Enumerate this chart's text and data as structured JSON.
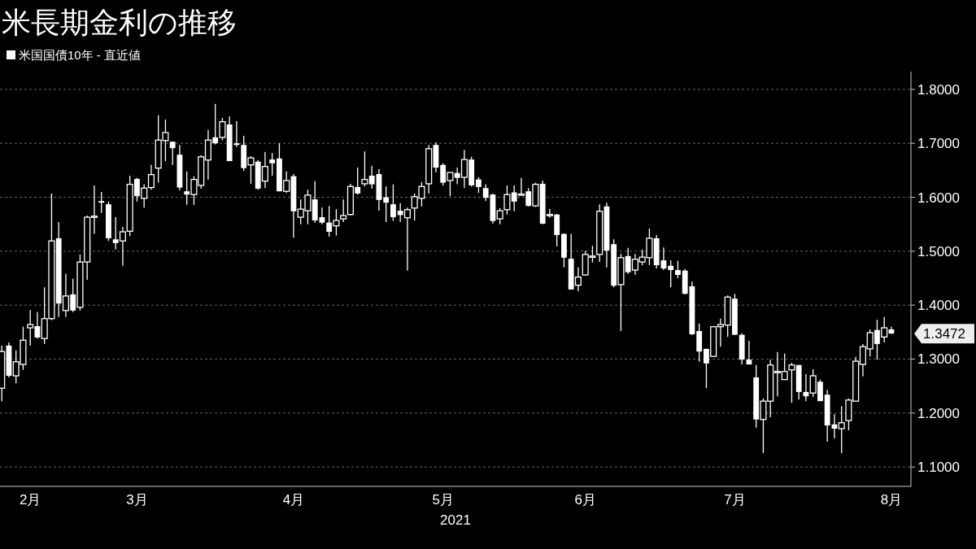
{
  "chart_data": {
    "type": "candlestick",
    "title": "米長期金利の推移",
    "xlabel": "2021",
    "categories": [
      null,
      null,
      null,
      null,
      "2月",
      null,
      null,
      null,
      null,
      null,
      null,
      null,
      null,
      null,
      null,
      null,
      null,
      null,
      null,
      "3月",
      null,
      null,
      null,
      null,
      null,
      null,
      null,
      null,
      null,
      null,
      null,
      null,
      null,
      null,
      null,
      null,
      null,
      null,
      null,
      null,
      null,
      "4月",
      null,
      null,
      null,
      null,
      null,
      null,
      null,
      null,
      null,
      null,
      null,
      null,
      null,
      null,
      null,
      null,
      null,
      null,
      null,
      null,
      "5月",
      null,
      null,
      null,
      null,
      null,
      null,
      null,
      null,
      null,
      null,
      null,
      null,
      null,
      null,
      null,
      null,
      null,
      null,
      null,
      "6月",
      null,
      null,
      null,
      null,
      null,
      null,
      null,
      null,
      null,
      null,
      null,
      null,
      null,
      null,
      null,
      null,
      null,
      null,
      null,
      null,
      "7月",
      null,
      null,
      null,
      null,
      null,
      null,
      null,
      null,
      null,
      null,
      null,
      null,
      null,
      null,
      null,
      null,
      null,
      null,
      null,
      null,
      null,
      "8月"
    ],
    "series": [
      {
        "name": "米国国債10年 - 直近値",
        "color": "#ffffff",
        "ohlc": [
          [
            1.246,
            1.325,
            1.222,
            1.314
          ],
          [
            1.325,
            1.331,
            1.266,
            1.269
          ],
          [
            1.269,
            1.316,
            1.255,
            1.295
          ],
          [
            1.29,
            1.36,
            1.28,
            1.335
          ],
          [
            1.358,
            1.391,
            1.325,
            1.364
          ],
          [
            1.361,
            1.387,
            1.338,
            1.34
          ],
          [
            1.338,
            1.433,
            1.328,
            1.375
          ],
          [
            1.375,
            1.607,
            1.372,
            1.519
          ],
          [
            1.524,
            1.554,
            1.378,
            1.403
          ],
          [
            1.39,
            1.458,
            1.378,
            1.417
          ],
          [
            1.42,
            1.449,
            1.387,
            1.39
          ],
          [
            1.396,
            1.494,
            1.39,
            1.48
          ],
          [
            1.48,
            1.566,
            1.447,
            1.563
          ],
          [
            1.563,
            1.622,
            1.532,
            1.565
          ],
          [
            1.593,
            1.61,
            1.571,
            1.59
          ],
          [
            1.587,
            1.592,
            1.519,
            1.524
          ],
          [
            1.522,
            1.563,
            1.503,
            1.515
          ],
          [
            1.519,
            1.545,
            1.473,
            1.536
          ],
          [
            1.537,
            1.64,
            1.528,
            1.624
          ],
          [
            1.634,
            1.636,
            1.592,
            1.602
          ],
          [
            1.598,
            1.624,
            1.581,
            1.617
          ],
          [
            1.618,
            1.66,
            1.614,
            1.642
          ],
          [
            1.654,
            1.752,
            1.627,
            1.706
          ],
          [
            1.705,
            1.744,
            1.667,
            1.72
          ],
          [
            1.703,
            1.703,
            1.66,
            1.691
          ],
          [
            1.679,
            1.697,
            1.613,
            1.618
          ],
          [
            1.611,
            1.648,
            1.586,
            1.605
          ],
          [
            1.605,
            1.639,
            1.586,
            1.633
          ],
          [
            1.622,
            1.678,
            1.616,
            1.675
          ],
          [
            1.669,
            1.725,
            1.633,
            1.706
          ],
          [
            1.711,
            1.773,
            1.698,
            1.7
          ],
          [
            1.711,
            1.747,
            1.706,
            1.74
          ],
          [
            1.735,
            1.75,
            1.667,
            1.667
          ],
          [
            1.7,
            1.741,
            1.693,
            1.697
          ],
          [
            1.697,
            1.714,
            1.649,
            1.654
          ],
          [
            1.66,
            1.676,
            1.625,
            1.673
          ],
          [
            1.666,
            1.669,
            1.614,
            1.616
          ],
          [
            1.63,
            1.684,
            1.617,
            1.657
          ],
          [
            1.67,
            1.682,
            1.64,
            1.663
          ],
          [
            1.672,
            1.7,
            1.611,
            1.611
          ],
          [
            1.611,
            1.648,
            1.608,
            1.631
          ],
          [
            1.639,
            1.643,
            1.525,
            1.574
          ],
          [
            1.563,
            1.596,
            1.55,
            1.578
          ],
          [
            1.575,
            1.614,
            1.55,
            1.604
          ],
          [
            1.596,
            1.63,
            1.553,
            1.557
          ],
          [
            1.563,
            1.581,
            1.55,
            1.553
          ],
          [
            1.553,
            1.584,
            1.527,
            1.536
          ],
          [
            1.547,
            1.578,
            1.529,
            1.557
          ],
          [
            1.56,
            1.596,
            1.554,
            1.566
          ],
          [
            1.568,
            1.625,
            1.566,
            1.62
          ],
          [
            1.619,
            1.655,
            1.605,
            1.607
          ],
          [
            1.625,
            1.685,
            1.62,
            1.633
          ],
          [
            1.64,
            1.658,
            1.616,
            1.624
          ],
          [
            1.643,
            1.652,
            1.575,
            1.595
          ],
          [
            1.6,
            1.62,
            1.554,
            1.59
          ],
          [
            1.587,
            1.624,
            1.556,
            1.563
          ],
          [
            1.575,
            1.589,
            1.554,
            1.567
          ],
          [
            1.562,
            1.581,
            1.464,
            1.577
          ],
          [
            1.58,
            1.607,
            1.557,
            1.601
          ],
          [
            1.598,
            1.628,
            1.583,
            1.62
          ],
          [
            1.625,
            1.697,
            1.607,
            1.69
          ],
          [
            1.697,
            1.702,
            1.646,
            1.655
          ],
          [
            1.66,
            1.663,
            1.622,
            1.627
          ],
          [
            1.631,
            1.646,
            1.602,
            1.646
          ],
          [
            1.645,
            1.655,
            1.624,
            1.636
          ],
          [
            1.637,
            1.688,
            1.617,
            1.67
          ],
          [
            1.67,
            1.675,
            1.62,
            1.622
          ],
          [
            1.633,
            1.637,
            1.608,
            1.619
          ],
          [
            1.617,
            1.624,
            1.593,
            1.599
          ],
          [
            1.605,
            1.607,
            1.551,
            1.556
          ],
          [
            1.56,
            1.58,
            1.55,
            1.575
          ],
          [
            1.577,
            1.622,
            1.568,
            1.605
          ],
          [
            1.609,
            1.622,
            1.574,
            1.592
          ],
          [
            1.605,
            1.636,
            1.603,
            1.606
          ],
          [
            1.611,
            1.617,
            1.583,
            1.584
          ],
          [
            1.584,
            1.627,
            1.582,
            1.624
          ],
          [
            1.625,
            1.631,
            1.55,
            1.551
          ],
          [
            1.566,
            1.578,
            1.562,
            1.568
          ],
          [
            1.568,
            1.569,
            1.509,
            1.53
          ],
          [
            1.532,
            1.533,
            1.47,
            1.488
          ],
          [
            1.486,
            1.532,
            1.429,
            1.429
          ],
          [
            1.437,
            1.47,
            1.426,
            1.452
          ],
          [
            1.456,
            1.501,
            1.455,
            1.494
          ],
          [
            1.49,
            1.51,
            1.479,
            1.491
          ],
          [
            1.494,
            1.587,
            1.48,
            1.574
          ],
          [
            1.583,
            1.59,
            1.47,
            1.501
          ],
          [
            1.513,
            1.522,
            1.433,
            1.436
          ],
          [
            1.438,
            1.495,
            1.352,
            1.488
          ],
          [
            1.491,
            1.506,
            1.458,
            1.461
          ],
          [
            1.465,
            1.495,
            1.456,
            1.485
          ],
          [
            1.48,
            1.503,
            1.474,
            1.489
          ],
          [
            1.488,
            1.542,
            1.474,
            1.524
          ],
          [
            1.524,
            1.53,
            1.468,
            1.474
          ],
          [
            1.483,
            1.507,
            1.465,
            1.468
          ],
          [
            1.473,
            1.483,
            1.433,
            1.465
          ],
          [
            1.465,
            1.482,
            1.45,
            1.456
          ],
          [
            1.464,
            1.467,
            1.42,
            1.421
          ],
          [
            1.435,
            1.444,
            1.345,
            1.346
          ],
          [
            1.352,
            1.366,
            1.295,
            1.314
          ],
          [
            1.319,
            1.319,
            1.246,
            1.292
          ],
          [
            1.305,
            1.36,
            1.305,
            1.36
          ],
          [
            1.36,
            1.375,
            1.323,
            1.364
          ],
          [
            1.363,
            1.418,
            1.341,
            1.415
          ],
          [
            1.412,
            1.421,
            1.345,
            1.345
          ],
          [
            1.345,
            1.348,
            1.29,
            1.299
          ],
          [
            1.299,
            1.334,
            1.29,
            1.29
          ],
          [
            1.266,
            1.289,
            1.173,
            1.188
          ],
          [
            1.188,
            1.227,
            1.126,
            1.222
          ],
          [
            1.222,
            1.299,
            1.192,
            1.289
          ],
          [
            1.277,
            1.313,
            1.231,
            1.277
          ],
          [
            1.262,
            1.31,
            1.262,
            1.277
          ],
          [
            1.28,
            1.293,
            1.219,
            1.289
          ],
          [
            1.289,
            1.289,
            1.225,
            1.239
          ],
          [
            1.239,
            1.272,
            1.222,
            1.231
          ],
          [
            1.237,
            1.281,
            1.23,
            1.269
          ],
          [
            1.258,
            1.262,
            1.222,
            1.222
          ],
          [
            1.234,
            1.243,
            1.147,
            1.177
          ],
          [
            1.179,
            1.198,
            1.153,
            1.171
          ],
          [
            1.171,
            1.213,
            1.126,
            1.182
          ],
          [
            1.186,
            1.227,
            1.168,
            1.224
          ],
          [
            1.222,
            1.304,
            1.222,
            1.296
          ],
          [
            1.29,
            1.328,
            1.268,
            1.323
          ],
          [
            1.319,
            1.355,
            1.305,
            1.349
          ],
          [
            1.354,
            1.373,
            1.299,
            1.328
          ],
          [
            1.341,
            1.378,
            1.331,
            1.358
          ],
          [
            1.355,
            1.36,
            1.347,
            1.3472
          ]
        ]
      }
    ],
    "ylim": [
      1.064,
      1.833
    ],
    "yticks": [
      {
        "value": 1.1,
        "label": "1.1000"
      },
      {
        "value": 1.2,
        "label": "1.2000"
      },
      {
        "value": 1.3,
        "label": "1.3000"
      },
      {
        "value": 1.4,
        "label": "1.4000"
      },
      {
        "value": 1.5,
        "label": "1.5000"
      },
      {
        "value": 1.6,
        "label": "1.6000"
      },
      {
        "value": 1.7,
        "label": "1.7000"
      },
      {
        "value": 1.8,
        "label": "1.8000"
      }
    ],
    "grid": "y",
    "legend": "top left",
    "annotations": [
      {
        "text": "1.3472",
        "x": "8月",
        "y": 1.3472
      }
    ]
  }
}
